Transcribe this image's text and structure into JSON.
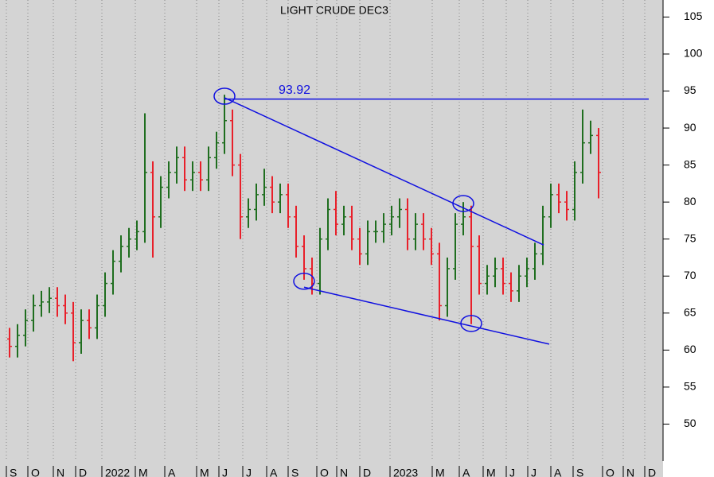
{
  "chart_data": {
    "type": "ohlc",
    "title": "LIGHT CRUDE DEC3",
    "up_color": "#1f6e1f",
    "down_color": "#e8202a",
    "line_color": "#1010e0",
    "xlim": [
      -1.2,
      82.1
    ],
    "ylim": [
      45,
      107.3
    ],
    "yticks": [
      50,
      55,
      60,
      65,
      70,
      75,
      80,
      85,
      90,
      95,
      100,
      105
    ],
    "xticks": [
      {
        "value": -0.4,
        "label": "S"
      },
      {
        "value": 2.3,
        "label": "O"
      },
      {
        "value": 5.5,
        "label": "N"
      },
      {
        "value": 8.3,
        "label": "D"
      },
      {
        "value": 11.6,
        "label": "2022"
      },
      {
        "value": 15.8,
        "label": "M"
      },
      {
        "value": 19.5,
        "label": "A"
      },
      {
        "value": 23.5,
        "label": "M"
      },
      {
        "value": 26.3,
        "label": "J"
      },
      {
        "value": 29.3,
        "label": "J"
      },
      {
        "value": 32.3,
        "label": "A"
      },
      {
        "value": 35,
        "label": "S"
      },
      {
        "value": 38.6,
        "label": "O"
      },
      {
        "value": 41.1,
        "label": "N"
      },
      {
        "value": 44,
        "label": "D"
      },
      {
        "value": 47.8,
        "label": "2023"
      },
      {
        "value": 53.1,
        "label": "M"
      },
      {
        "value": 56.5,
        "label": "A"
      },
      {
        "value": 59.5,
        "label": "M"
      },
      {
        "value": 62.4,
        "label": "J"
      },
      {
        "value": 65.1,
        "label": "J"
      },
      {
        "value": 68,
        "label": "A"
      },
      {
        "value": 70.8,
        "label": "S"
      },
      {
        "value": 74.5,
        "label": "O"
      },
      {
        "value": 77.1,
        "label": "N"
      },
      {
        "value": 79.8,
        "label": "D"
      }
    ],
    "open": [
      61.5,
      60.5,
      62,
      64,
      66,
      66.5,
      67,
      66,
      65,
      61,
      64,
      63,
      66,
      69,
      72,
      74,
      75,
      76,
      84,
      78,
      82,
      84,
      86,
      83,
      84,
      83,
      86,
      88,
      91,
      85,
      78,
      79,
      81,
      82,
      80,
      81,
      78,
      74,
      71,
      69,
      75,
      79,
      77,
      78,
      75,
      73,
      76,
      76,
      77,
      78,
      79,
      75,
      77,
      75,
      73,
      66,
      71,
      77,
      78,
      74,
      69,
      70,
      71,
      69,
      68,
      70,
      71,
      73,
      78,
      81,
      80,
      79,
      84,
      88,
      89
    ],
    "high": [
      63,
      63.5,
      65.5,
      67.5,
      68,
      68.5,
      68.5,
      67.5,
      66.5,
      65.5,
      65.5,
      67.5,
      70.5,
      73.5,
      75.5,
      76.5,
      77.5,
      92,
      85.5,
      83.5,
      85.5,
      87.5,
      87.5,
      85.5,
      85.5,
      87.5,
      89.5,
      94.5,
      92.5,
      86.5,
      80.5,
      82.5,
      84.5,
      83.5,
      82.5,
      82.5,
      79.5,
      75.5,
      72.5,
      76.5,
      80.5,
      81.5,
      79.5,
      79.5,
      76.5,
      77.5,
      77.5,
      78.5,
      79.5,
      80.5,
      80.5,
      78.5,
      78.5,
      76.5,
      74.5,
      72.5,
      78.5,
      80,
      79.5,
      75.5,
      71.5,
      72.5,
      72.5,
      70.5,
      71.5,
      72.5,
      74.5,
      79.5,
      82.5,
      82.5,
      81.5,
      85.5,
      92.5,
      91,
      90
    ],
    "low": [
      59,
      59,
      60.5,
      62.5,
      64.5,
      65,
      64.5,
      63.5,
      58.5,
      59.5,
      61.5,
      61.5,
      64.5,
      67.5,
      70.5,
      72.5,
      73.5,
      74.5,
      72.5,
      76.5,
      80.5,
      82.5,
      81.5,
      81.5,
      81.5,
      81.5,
      84.5,
      86.5,
      83.5,
      75,
      76.5,
      77.5,
      79.5,
      78.5,
      78.5,
      76.5,
      72.5,
      69.5,
      67.5,
      67.5,
      73.5,
      75.5,
      75.5,
      73.5,
      71.5,
      71.5,
      74.5,
      74.5,
      75.5,
      76.5,
      73.5,
      73.5,
      73.5,
      71.5,
      64,
      64.5,
      69.5,
      75.5,
      63.5,
      67.5,
      67.5,
      68.5,
      67.5,
      66.5,
      66.5,
      68.5,
      69.5,
      71.5,
      76.5,
      78.5,
      77.5,
      77.5,
      82.5,
      86.5,
      80.5
    ],
    "close": [
      60.5,
      62,
      64,
      66,
      66.5,
      67,
      66,
      65,
      61,
      64,
      63,
      66,
      69,
      72,
      74,
      75,
      76,
      84,
      78,
      82,
      84,
      86,
      83,
      84,
      83,
      86,
      88,
      91,
      85,
      78,
      79,
      81,
      82,
      80,
      81,
      78,
      74,
      71,
      69,
      75,
      79,
      77,
      78,
      75,
      73,
      76,
      76,
      77,
      78,
      79,
      75,
      77,
      75,
      73,
      66,
      71,
      77,
      78,
      74,
      69,
      70,
      71,
      69,
      68,
      70,
      71,
      73,
      78,
      81,
      80,
      79,
      84,
      88,
      89,
      84
    ],
    "level": {
      "value": 93.92,
      "x": [
        27,
        80.3
      ]
    },
    "trendlines": [
      {
        "x": [
          27,
          67.1
        ],
        "y": [
          94.1,
          74.2
        ]
      },
      {
        "x": [
          37,
          67.8
        ],
        "y": [
          68.5,
          60.8
        ]
      }
    ],
    "circles": [
      {
        "x": 27,
        "y": 94.3
      },
      {
        "x": 57,
        "y": 79.8
      },
      {
        "x": 37,
        "y": 69.3
      },
      {
        "x": 58,
        "y": 63.6
      }
    ]
  }
}
